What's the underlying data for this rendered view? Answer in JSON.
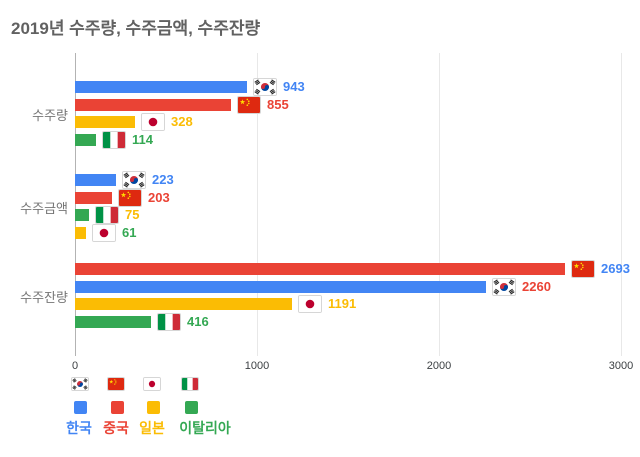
{
  "title": "2019년 수주량, 수주금액, 수주잔량",
  "colors": {
    "korea_blue": "#4285F4",
    "china_red": "#EA4335",
    "japan_yellow": "#FBBC04",
    "italy_green": "#34A853",
    "title_text": "#616161",
    "category_text": "#757575",
    "axis_text": "#3c4043",
    "gridline": "#e8e8e8",
    "axis_line": "#b3b3b3"
  },
  "chart_data": {
    "type": "bar",
    "orientation": "horizontal",
    "title": "2019년 수주량, 수주금액, 수주잔량",
    "categories": [
      "수주량",
      "수주금액",
      "수주잔량"
    ],
    "series": [
      {
        "name": "한국",
        "color": "#4285F4",
        "flag": "kr",
        "values": [
          943,
          223,
          2260
        ]
      },
      {
        "name": "중국",
        "color": "#EA4335",
        "flag": "cn",
        "values": [
          855,
          203,
          2693
        ]
      },
      {
        "name": "일본",
        "color": "#FBBC04",
        "flag": "jp",
        "values": [
          328,
          61,
          1191
        ]
      },
      {
        "name": "이탈리아",
        "color": "#34A853",
        "flag": "it",
        "values": [
          114,
          75,
          416
        ]
      }
    ],
    "x_ticks": [
      "0",
      "1000",
      "2000",
      "3000"
    ],
    "xlim": [
      0,
      3000
    ],
    "grid": true,
    "legend_position": "bottom-left",
    "sort_note": "bars sorted descending within each category group; value-label colors follow fixed series order causing color/bar mismatches"
  },
  "display_rows": [
    {
      "category": "수주량",
      "rows": [
        {
          "value": 943,
          "bar_color": "#4285F4",
          "flag": "kr",
          "label_color": "#4285F4"
        },
        {
          "value": 855,
          "bar_color": "#EA4335",
          "flag": "cn",
          "label_color": "#EA4335"
        },
        {
          "value": 328,
          "bar_color": "#FBBC04",
          "flag": "jp",
          "label_color": "#FBBC04"
        },
        {
          "value": 114,
          "bar_color": "#34A853",
          "flag": "it",
          "label_color": "#34A853"
        }
      ]
    },
    {
      "category": "수주금액",
      "rows": [
        {
          "value": 223,
          "bar_color": "#4285F4",
          "flag": "kr",
          "label_color": "#4285F4"
        },
        {
          "value": 203,
          "bar_color": "#EA4335",
          "flag": "cn",
          "label_color": "#EA4335"
        },
        {
          "value": 75,
          "bar_color": "#34A853",
          "flag": "it",
          "label_color": "#FBBC04"
        },
        {
          "value": 61,
          "bar_color": "#FBBC04",
          "flag": "jp",
          "label_color": "#34A853"
        }
      ]
    },
    {
      "category": "수주잔량",
      "rows": [
        {
          "value": 2693,
          "bar_color": "#EA4335",
          "flag": "cn",
          "label_color": "#4285F4"
        },
        {
          "value": 2260,
          "bar_color": "#4285F4",
          "flag": "kr",
          "label_color": "#EA4335"
        },
        {
          "value": 1191,
          "bar_color": "#FBBC04",
          "flag": "jp",
          "label_color": "#FBBC04"
        },
        {
          "value": 416,
          "bar_color": "#34A853",
          "flag": "it",
          "label_color": "#34A853"
        }
      ]
    }
  ],
  "legend": {
    "items": [
      {
        "label": "한국",
        "color": "#4285F4",
        "flag": "kr"
      },
      {
        "label": "중국",
        "color": "#EA4335",
        "flag": "cn"
      },
      {
        "label": "일본",
        "color": "#FBBC04",
        "flag": "jp"
      },
      {
        "label": "이탈리아",
        "color": "#34A853",
        "flag": "it"
      }
    ]
  }
}
